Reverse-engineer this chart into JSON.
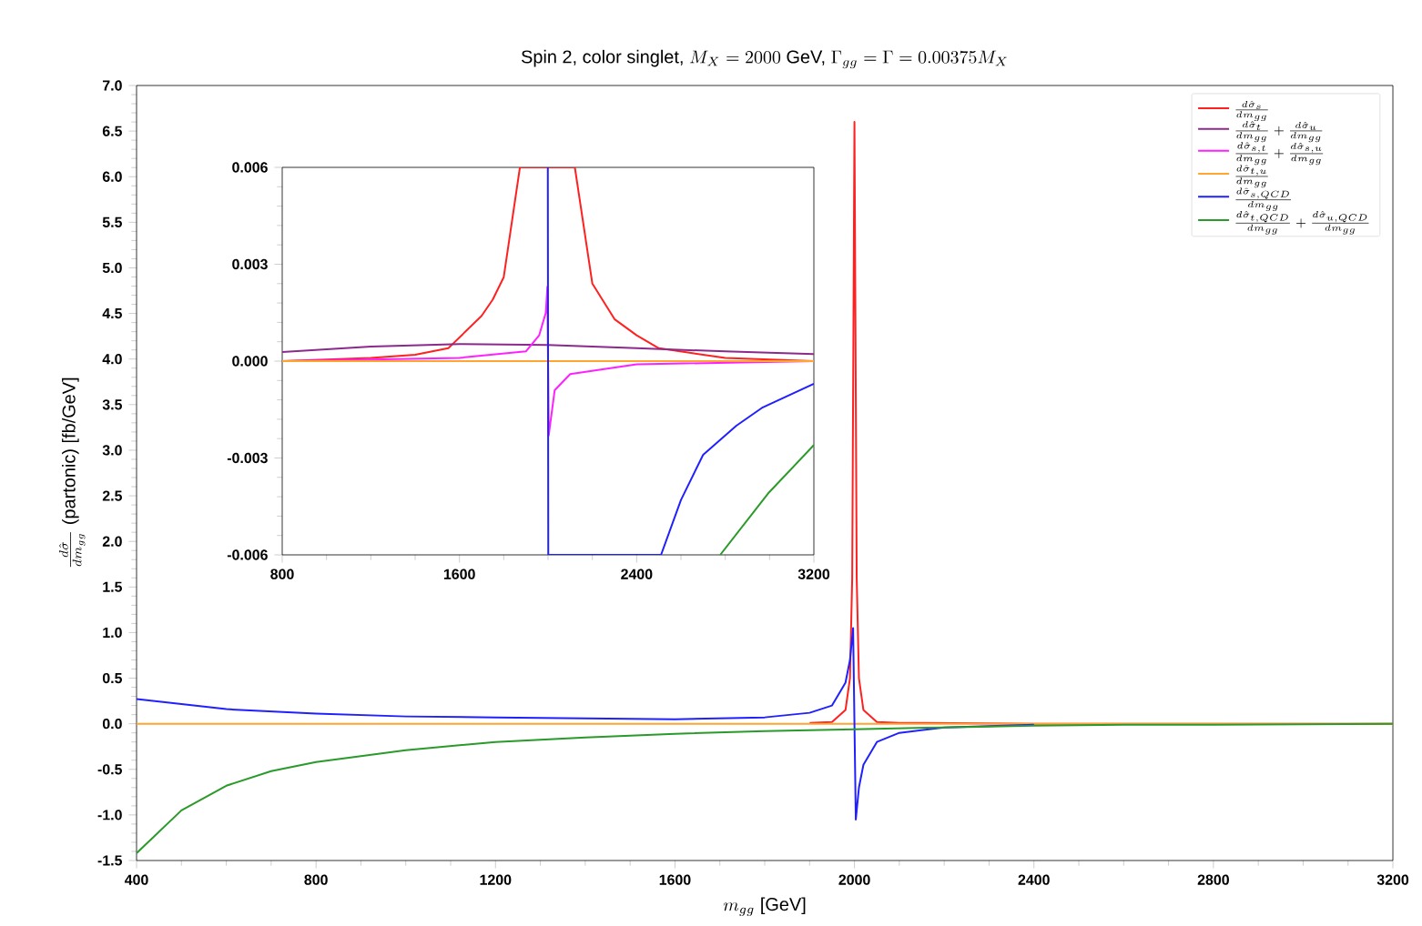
{
  "chart_data": [
    {
      "type": "line",
      "title": "\\text{Spin 2, color singlet, }M_X = 2000\\text{ GeV, }\\Gamma_{gg} = \\Gamma = 0.00375 M_X",
      "xlabel": "m_{gg}\\ \\text{[GeV]}",
      "ylabel": "\\frac{d\\hat{\\sigma}}{dm_{gg}}\\ \\text{(partonic) [fb/GeV]}",
      "xlim": [
        400,
        3200
      ],
      "ylim": [
        -1.5,
        7.0
      ],
      "xticks": [
        400,
        800,
        1200,
        1600,
        2000,
        2400,
        2800,
        3200
      ],
      "yticks": [
        {
          "value": -1.5,
          "label": "-1.5"
        },
        {
          "value": -1.0,
          "label": "-1.0"
        },
        {
          "value": -0.5,
          "label": "-0.5"
        },
        {
          "value": 0,
          "label": "0.0"
        },
        {
          "value": 0.5,
          "label": "0.5"
        },
        {
          "value": 1.0,
          "label": "1.0"
        },
        {
          "value": 1.5,
          "label": "1.5"
        },
        {
          "value": 2.0,
          "label": "2.0"
        },
        {
          "value": 2.5,
          "label": "2.5"
        },
        {
          "value": 3.0,
          "label": "3.0"
        },
        {
          "value": 3.5,
          "label": "3.5"
        },
        {
          "value": 4.0,
          "label": "4.0"
        },
        {
          "value": 4.5,
          "label": "4.5"
        },
        {
          "value": 5.0,
          "label": "5.0"
        },
        {
          "value": 5.5,
          "label": "5.5"
        },
        {
          "value": 6.0,
          "label": "6.0"
        },
        {
          "value": 6.5,
          "label": "6.5"
        },
        {
          "value": 7.0,
          "label": "7.0"
        }
      ],
      "legend": "top right",
      "grid": false,
      "series": [
        {
          "name": "\\frac{d\\hat{\\sigma}_s}{dm_{gg}}",
          "color": "#ff2020",
          "x": [
            1900,
            1950,
            1980,
            1990,
            1995,
            2000,
            2005,
            2010,
            2020,
            2050,
            2100,
            2400,
            3200
          ],
          "values": [
            0.01,
            0.02,
            0.15,
            0.5,
            1.6,
            6.6,
            1.6,
            0.5,
            0.15,
            0.02,
            0.01,
            0,
            0
          ]
        },
        {
          "name": "\\frac{d\\hat{\\sigma}_t}{dm_{gg}} + \\frac{d\\hat{\\sigma}_u}{dm_{gg}}",
          "color": "#8b2a8b"
        },
        {
          "name": "\\frac{d\\hat{\\sigma}_{s,t}}{dm_{gg}} + \\frac{d\\hat{\\sigma}_{s,u}}{dm_{gg}}",
          "color": "#ff20ff"
        },
        {
          "name": "\\frac{d\\hat{\\sigma}_{t,u}}{dm_{gg}}",
          "color": "#ffa530",
          "x": [
            400,
            1600,
            3200
          ],
          "values": [
            0,
            0,
            0
          ]
        },
        {
          "name": "\\frac{d\\hat{\\sigma}_{s,QCD}}{dm_{gg}}",
          "color": "#2020ff",
          "x": [
            400,
            600,
            800,
            1000,
            1200,
            1400,
            1600,
            1800,
            1900,
            1950,
            1980,
            1990,
            1997,
            2000,
            2003,
            2010,
            2020,
            2050,
            2100,
            2200,
            2400
          ],
          "values": [
            0.27,
            0.16,
            0.11,
            0.08,
            0.07,
            0.06,
            0.05,
            0.07,
            0.12,
            0.2,
            0.45,
            0.7,
            1.05,
            0,
            -1.05,
            -0.7,
            -0.45,
            -0.2,
            -0.1,
            -0.04,
            -0.01
          ]
        },
        {
          "name": "\\frac{d\\hat{\\sigma}_{t,QCD}}{dm_{gg}} + \\frac{d\\hat{\\sigma}_{u,QCD}}{dm_{gg}}",
          "color": "#2a9a2a",
          "x": [
            400,
            500,
            600,
            700,
            800,
            1000,
            1200,
            1400,
            1600,
            1800,
            2000,
            2200,
            2400,
            2600,
            2800,
            3200
          ],
          "values": [
            -1.42,
            -0.95,
            -0.68,
            -0.52,
            -0.42,
            -0.29,
            -0.2,
            -0.15,
            -0.11,
            -0.08,
            -0.06,
            -0.04,
            -0.02,
            -0.01,
            -0.01,
            0
          ]
        }
      ]
    },
    {
      "type": "line",
      "xlim": [
        800,
        3200
      ],
      "ylim": [
        -0.006,
        0.006
      ],
      "xticks": [
        800,
        1600,
        2400,
        3200
      ],
      "yticks": [
        {
          "value": -0.006,
          "label": "-0.006"
        },
        {
          "value": -0.003,
          "label": "-0.003"
        },
        {
          "value": 0,
          "label": "0.000"
        },
        {
          "value": 0.003,
          "label": "0.003"
        },
        {
          "value": 0.006,
          "label": "0.006"
        }
      ],
      "grid": false,
      "series": [
        {
          "color": "#ff2020",
          "x": [
            800,
            1200,
            1400,
            1550,
            1700,
            1750,
            1800,
            1873,
            2121,
            2200,
            2300,
            2400,
            2500,
            2800,
            3200
          ],
          "values": [
            0,
            0.0001,
            0.0002,
            0.0004,
            0.0014,
            0.0019,
            0.0026,
            0.006,
            0.006,
            0.0024,
            0.0013,
            0.0008,
            0.0004,
            0.0001,
            0
          ]
        },
        {
          "color": "#8b2a8b",
          "x": [
            800,
            1200,
            1600,
            2000,
            2400,
            2800,
            3200
          ],
          "values": [
            0.00028,
            0.00045,
            0.00053,
            0.0005,
            0.0004,
            0.0003,
            0.00022
          ]
        },
        {
          "color": "#ff20ff",
          "x": [
            800,
            1600,
            1900,
            1960,
            1990,
            1997,
            2000,
            2003,
            2030,
            2100,
            2400,
            3200
          ],
          "values": [
            0,
            0.0001,
            0.0003,
            0.0008,
            0.0015,
            0.0023,
            0,
            -0.0023,
            -0.0009,
            -0.0004,
            -0.0001,
            0
          ]
        },
        {
          "color": "#ffa530",
          "x": [
            800,
            2000,
            3200
          ],
          "values": [
            0,
            0,
            0
          ]
        },
        {
          "color": "#2020ff",
          "x": [
            1999,
            2000,
            2001,
            2510,
            2600,
            2700,
            2850,
            2965,
            3200
          ],
          "values": [
            0.006,
            0,
            -0.006,
            -0.006,
            -0.0043,
            -0.0029,
            -0.002,
            -0.00145,
            -0.0007
          ]
        },
        {
          "color": "#2a9a2a",
          "x": [
            2777,
            2993,
            3200
          ],
          "values": [
            -0.006,
            -0.0041,
            -0.0026
          ]
        }
      ]
    }
  ]
}
